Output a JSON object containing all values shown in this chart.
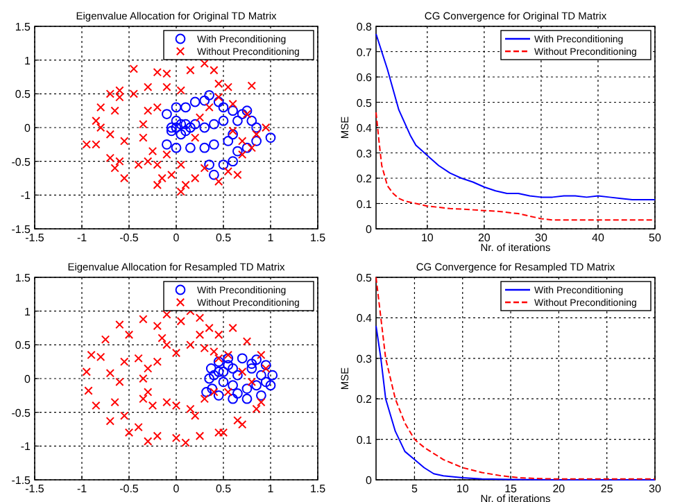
{
  "chart_data": [
    {
      "type": "scatter",
      "title": "Eigenvalue Allocation for Original TD Matrix",
      "xlim": [
        -1.5,
        1.5
      ],
      "ylim": [
        -1.5,
        1.5
      ],
      "xticks": [
        -1.5,
        -1,
        -0.5,
        0,
        0.5,
        1,
        1.5
      ],
      "yticks": [
        -1.5,
        -1,
        -0.5,
        0,
        0.5,
        1,
        1.5
      ],
      "grid": true,
      "legend": "top right",
      "series": [
        {
          "name": "With Preconditioning",
          "color": "#0000ff",
          "marker": "circle",
          "x": [
            0,
            0.05,
            0.1,
            -0.05,
            0.1,
            0.15,
            0.05,
            0,
            0.2,
            -0.05,
            0.35,
            0.3,
            0.2,
            0.1,
            0,
            -0.1,
            0.45,
            0.5,
            0.6,
            0.7,
            0.75,
            0.8,
            0.85,
            1,
            0.85,
            0.75,
            0.65,
            0.6,
            0.5,
            0.4,
            0.35,
            -0.1,
            0,
            0.15,
            0.3,
            0.4,
            0.55,
            0.6,
            0.65,
            0.5,
            0.4,
            0.3
          ],
          "values": [
            0,
            0.05,
            -0.05,
            0,
            0.05,
            0,
            -0.1,
            0.1,
            0.05,
            -0.05,
            0.48,
            0.4,
            0.38,
            0.3,
            0.3,
            0.2,
            0.38,
            0.3,
            0.25,
            0.2,
            0.25,
            0.1,
            0,
            -0.15,
            -0.2,
            -0.3,
            -0.35,
            -0.5,
            -0.55,
            -0.7,
            -0.55,
            -0.25,
            -0.3,
            -0.3,
            -0.3,
            -0.25,
            -0.2,
            -0.1,
            0.1,
            0.1,
            0.05,
            0
          ]
        },
        {
          "name": "Without Preconditioning",
          "color": "#ff0000",
          "marker": "cross",
          "x": [
            -0.6,
            -0.45,
            -0.2,
            -0.1,
            0.15,
            0.3,
            0.4,
            0.45,
            0.55,
            0.8,
            -0.7,
            -0.6,
            -0.45,
            -0.3,
            -0.1,
            0.05,
            -0.2,
            -0.3,
            -0.8,
            -0.65,
            -0.85,
            -0.8,
            -0.95,
            -0.85,
            -0.7,
            -0.55,
            -0.35,
            -0.35,
            -0.25,
            -0.1,
            -0.7,
            -0.6,
            -0.65,
            -0.55,
            -0.4,
            -0.3,
            -0.2,
            -0.15,
            -0.2,
            -0.05,
            0.05,
            0.1,
            0.05,
            0.2,
            0.3,
            0.45,
            0.55,
            0.65,
            0.7,
            0.8,
            0.85,
            0.95,
            0.75,
            0.6,
            0.45,
            0.35,
            0.25,
            0.2,
            0.6,
            0.7
          ],
          "values": [
            0.55,
            0.87,
            0.82,
            0.8,
            0.85,
            0.95,
            0.85,
            0.65,
            0.6,
            0.62,
            0.5,
            0.45,
            0.5,
            0.6,
            0.6,
            0.55,
            0.3,
            0.25,
            0.3,
            0.25,
            0.1,
            0,
            -0.25,
            -0.25,
            -0.1,
            -0.2,
            0.05,
            -0.15,
            -0.35,
            -0.4,
            -0.45,
            -0.5,
            -0.6,
            -0.75,
            -0.55,
            -0.5,
            -0.55,
            -0.75,
            -0.85,
            -0.7,
            -0.55,
            -0.85,
            -0.95,
            -0.75,
            -0.6,
            -0.8,
            -0.65,
            -0.7,
            -0.4,
            -0.3,
            -0.1,
            0,
            0.2,
            0.35,
            0.45,
            0.3,
            0.15,
            -0.15,
            -0.05,
            -0.2
          ]
        }
      ]
    },
    {
      "type": "line",
      "title": "CG Convergence for Original TD Matrix",
      "xlabel": "Nr. of iterations",
      "ylabel": "MSE",
      "xlim": [
        1,
        50
      ],
      "ylim": [
        0,
        0.8
      ],
      "xticks": [
        10,
        20,
        30,
        40,
        50
      ],
      "yticks": [
        0,
        0.1,
        0.2,
        0.3,
        0.4,
        0.5,
        0.6,
        0.7,
        0.8
      ],
      "grid": true,
      "legend": "top right",
      "series": [
        {
          "name": "With Preconditioning",
          "color": "#0000ff",
          "line_style": "solid",
          "x": [
            1,
            2,
            3,
            4,
            5,
            6,
            7,
            8,
            9,
            10,
            12,
            14,
            16,
            18,
            20,
            22,
            24,
            26,
            28,
            30,
            32,
            34,
            36,
            38,
            40,
            42,
            44,
            46,
            48,
            50
          ],
          "values": [
            0.77,
            0.7,
            0.63,
            0.55,
            0.47,
            0.42,
            0.37,
            0.33,
            0.31,
            0.29,
            0.25,
            0.22,
            0.2,
            0.185,
            0.165,
            0.15,
            0.14,
            0.14,
            0.13,
            0.125,
            0.125,
            0.13,
            0.13,
            0.125,
            0.13,
            0.125,
            0.12,
            0.115,
            0.115,
            0.115
          ]
        },
        {
          "name": "Without Preconditioning",
          "color": "#ff0000",
          "line_style": "dashed",
          "x": [
            1,
            1.5,
            2,
            3,
            4,
            5,
            6,
            8,
            10,
            12,
            14,
            16,
            18,
            20,
            22,
            24,
            26,
            28,
            30,
            32,
            35,
            40,
            45,
            50
          ],
          "values": [
            0.46,
            0.35,
            0.25,
            0.17,
            0.14,
            0.12,
            0.11,
            0.1,
            0.09,
            0.085,
            0.08,
            0.078,
            0.075,
            0.072,
            0.07,
            0.065,
            0.06,
            0.05,
            0.04,
            0.035,
            0.035,
            0.035,
            0.035,
            0.035
          ]
        }
      ]
    },
    {
      "type": "scatter",
      "title": "Eigenvalue Allocation for Resampled TD Matrix",
      "xlim": [
        -1.5,
        1.5
      ],
      "ylim": [
        -1.5,
        1.5
      ],
      "xticks": [
        -1.5,
        -1,
        -0.5,
        0,
        0.5,
        1,
        1.5
      ],
      "yticks": [
        -1.5,
        -1,
        -0.5,
        0,
        0.5,
        1,
        1.5
      ],
      "grid": true,
      "legend": "top right",
      "series": [
        {
          "name": "With Preconditioning",
          "color": "#0000ff",
          "marker": "circle",
          "x": [
            0.35,
            0.37,
            0.45,
            0.55,
            0.7,
            0.85,
            0.95,
            1.02,
            1,
            0.9,
            0.75,
            0.6,
            0.45,
            0.38,
            0.5,
            0.6,
            0.8,
            0.9,
            0.85,
            0.6,
            0.5,
            0.65,
            0.75,
            0.55,
            0.45,
            0.95,
            0.8,
            0.65,
            0.4,
            0.32
          ],
          "values": [
            0,
            0.15,
            0.25,
            0.3,
            0.3,
            0.28,
            0.2,
            0.05,
            -0.1,
            -0.25,
            -0.3,
            -0.3,
            -0.25,
            -0.15,
            0.1,
            0.15,
            0.15,
            0.05,
            -0.1,
            -0.1,
            -0.05,
            0.05,
            -0.15,
            0.2,
            0.1,
            -0.05,
            0.22,
            -0.22,
            0.05,
            -0.2
          ]
        },
        {
          "name": "Without Preconditioning",
          "color": "#ff0000",
          "marker": "cross",
          "x": [
            -0.95,
            -0.9,
            -0.8,
            -0.75,
            -0.6,
            -0.5,
            -0.35,
            -0.2,
            -0.1,
            0.05,
            0.15,
            0.25,
            0.35,
            0.45,
            0.6,
            0.75,
            0.9,
            0.95,
            -0.93,
            -0.85,
            -0.7,
            -0.5,
            -0.4,
            -0.3,
            -0.2,
            0,
            0.1,
            0.25,
            0.45,
            0.5,
            0.65,
            0.7,
            0.85,
            0.9,
            -0.4,
            -0.3,
            -0.35,
            -0.3,
            -0.35,
            -0.25,
            -0.1,
            0,
            0.15,
            0.2,
            0.3,
            0.4,
            0.45,
            0.4,
            0.3,
            0.15,
            0,
            -0.1,
            -0.2,
            -0.55,
            -0.6,
            -0.7,
            -0.65,
            -0.55,
            0.55,
            0.7,
            0.8,
            0.55,
            -0.15,
            0.25
          ],
          "values": [
            0.1,
            0.35,
            0.32,
            0.58,
            0.8,
            0.65,
            0.88,
            0.78,
            0.95,
            0.85,
            1,
            0.9,
            0.75,
            0.65,
            0.75,
            0.55,
            0.35,
            0.15,
            -0.18,
            -0.4,
            -0.63,
            -0.8,
            -0.72,
            -0.93,
            -0.85,
            -0.88,
            -0.95,
            -0.85,
            -0.8,
            -0.8,
            -0.62,
            -0.68,
            -0.45,
            -0.35,
            0.3,
            0.15,
            0,
            -0.2,
            -0.3,
            -0.4,
            -0.35,
            -0.4,
            -0.45,
            -0.55,
            -0.3,
            -0.2,
            0.3,
            0.4,
            0.45,
            0.5,
            0.38,
            0.5,
            0.25,
            0.25,
            -0.05,
            0.08,
            -0.35,
            -0.55,
            0.35,
            0.1,
            -0.05,
            -0.2,
            0.6,
            0.65
          ]
        }
      ]
    },
    {
      "type": "line",
      "title": "CG Convergence for Resampled TD Matrix",
      "xlabel": "Nr. of iterations",
      "ylabel": "MSE",
      "xlim": [
        1,
        30
      ],
      "ylim": [
        0,
        0.5
      ],
      "xticks": [
        5,
        10,
        15,
        20,
        25,
        30
      ],
      "yticks": [
        0,
        0.1,
        0.2,
        0.3,
        0.4,
        0.5
      ],
      "grid": true,
      "legend": "top right",
      "series": [
        {
          "name": "With Preconditioning",
          "color": "#0000ff",
          "line_style": "solid",
          "x": [
            1,
            1.5,
            2,
            3,
            4,
            5,
            6,
            7,
            8,
            10,
            12,
            15,
            20,
            30
          ],
          "values": [
            0.38,
            0.3,
            0.2,
            0.12,
            0.07,
            0.05,
            0.03,
            0.015,
            0.01,
            0.005,
            0.002,
            0.001,
            0,
            0
          ]
        },
        {
          "name": "Without Preconditioning",
          "color": "#ff0000",
          "line_style": "dashed",
          "x": [
            1,
            2,
            3,
            4,
            5,
            6,
            7,
            8,
            10,
            12,
            14,
            16,
            18,
            20,
            25,
            30
          ],
          "values": [
            0.5,
            0.3,
            0.2,
            0.14,
            0.1,
            0.08,
            0.065,
            0.05,
            0.03,
            0.018,
            0.01,
            0.005,
            0.003,
            0.002,
            0.002,
            0.002
          ]
        }
      ]
    }
  ]
}
